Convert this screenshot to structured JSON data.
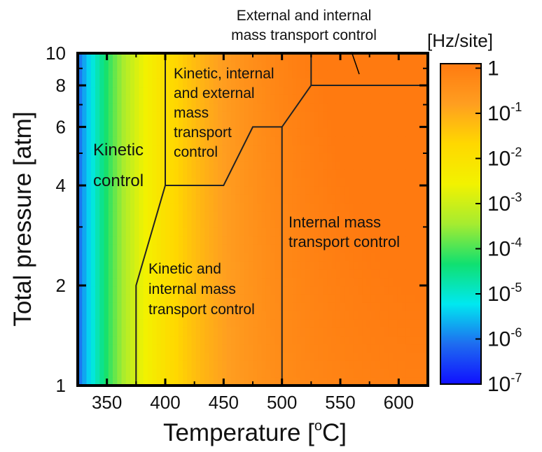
{
  "chart_data": {
    "type": "heatmap",
    "xlabel": "Temperature [",
    "xlabel_sup": "o",
    "xlabel_end": "C]",
    "ylabel": "Total pressure [atm]",
    "x_ticks": [
      350,
      400,
      450,
      500,
      550,
      600
    ],
    "x_tick_labels": [
      "350",
      "400",
      "450",
      "500",
      "550",
      "600"
    ],
    "xlim": [
      325,
      625
    ],
    "y_ticks": [
      1,
      2,
      4,
      6,
      8,
      10
    ],
    "y_tick_labels": [
      "1",
      "2",
      "4",
      "6",
      "8",
      "10"
    ],
    "ylim": [
      1,
      10
    ],
    "y_scale": "log",
    "colorbar": {
      "unit_label": "[Hz/site]",
      "scale": "log",
      "range_exp": [
        -7,
        0.1
      ],
      "tick_exps": [
        0,
        -1,
        -2,
        -3,
        -4,
        -5,
        -6,
        -7
      ],
      "tick_base": [
        "1",
        "10",
        "10",
        "10",
        "10",
        "10",
        "10",
        "10"
      ],
      "tick_sup": [
        "",
        "-1",
        "-2",
        "-3",
        "-4",
        "-5",
        "-6",
        "-7"
      ],
      "colors": [
        "#1010ff",
        "#1e6cf0",
        "#00e8f0",
        "#10e070",
        "#a6ec30",
        "#f2f200",
        "#ffd800",
        "#ff9e20",
        "#ff7a10"
      ]
    },
    "boundaries": [
      {
        "name": "kinetic-boundary",
        "points": [
          [
            375,
            1
          ],
          [
            375,
            2
          ],
          [
            400,
            4
          ],
          [
            400,
            10
          ]
        ]
      },
      {
        "name": "internal-mass-transport-boundary",
        "points": [
          [
            400,
            4
          ],
          [
            450,
            4
          ],
          [
            475,
            6
          ],
          [
            500,
            6
          ],
          [
            525,
            8
          ],
          [
            625,
            8
          ]
        ]
      },
      {
        "name": "mid-boundary",
        "points": [
          [
            500,
            1
          ],
          [
            500,
            6
          ]
        ]
      },
      {
        "name": "external-boundary",
        "points": [
          [
            525,
            8
          ],
          [
            525,
            10
          ]
        ]
      }
    ],
    "regions": [
      {
        "name": "kinetic-control",
        "lines": [
          "Kinetic",
          "control"
        ]
      },
      {
        "name": "kinetic-internal-external",
        "lines": [
          "Kinetic, internal",
          "and external",
          "mass",
          "transport",
          "control"
        ]
      },
      {
        "name": "kinetic-internal",
        "lines": [
          "Kinetic and",
          "internal mass",
          "transport control"
        ]
      },
      {
        "name": "internal-mass",
        "lines": [
          "Internal mass",
          "transport control"
        ]
      },
      {
        "name": "external-internal",
        "lines": [
          "External and internal",
          "mass transport control"
        ]
      }
    ]
  }
}
